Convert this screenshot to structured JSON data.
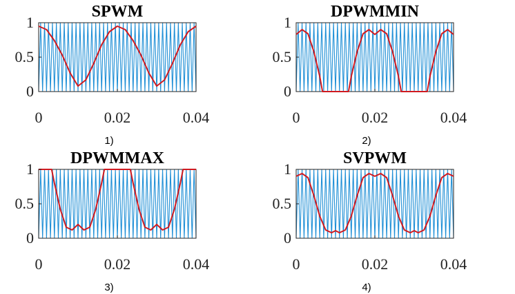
{
  "colors": {
    "carrier": "#1f8fd6",
    "reference": "#d01a20",
    "axis": "#222222"
  },
  "chart_data": [
    {
      "type": "line",
      "title": "SPWM",
      "caption": "1)",
      "xlim": [
        0,
        0.04
      ],
      "ylim": [
        0,
        1
      ],
      "xticks": [
        "0",
        "0.02",
        "0.04"
      ],
      "yticks": [
        "0",
        "0.5",
        "1"
      ],
      "series": [
        {
          "role": "carrier",
          "type": "triangle",
          "periods": 40,
          "min": 0,
          "max": 1
        },
        {
          "role": "reference",
          "x": [
            0,
            0.002,
            0.004,
            0.006,
            0.008,
            0.01,
            0.012,
            0.014,
            0.016,
            0.018,
            0.02,
            0.022,
            0.024,
            0.026,
            0.028,
            0.03,
            0.032,
            0.034,
            0.036,
            0.038,
            0.04
          ],
          "y": [
            0.95,
            0.9,
            0.74,
            0.53,
            0.27,
            0.08,
            0.17,
            0.41,
            0.68,
            0.87,
            0.95,
            0.9,
            0.74,
            0.53,
            0.27,
            0.08,
            0.17,
            0.41,
            0.68,
            0.87,
            0.95
          ]
        }
      ]
    },
    {
      "type": "line",
      "title": "DPWMMIN",
      "caption": "2)",
      "xlim": [
        0,
        0.04
      ],
      "ylim": [
        0,
        1
      ],
      "xticks": [
        "0",
        "0.02",
        "0.04"
      ],
      "yticks": [
        "0",
        "0.5",
        "1"
      ],
      "series": [
        {
          "role": "carrier",
          "type": "triangle",
          "periods": 40,
          "min": 0,
          "max": 1
        },
        {
          "role": "reference",
          "x": [
            0,
            0.0015,
            0.003,
            0.0045,
            0.006,
            0.0067,
            0.01,
            0.0133,
            0.014,
            0.0155,
            0.017,
            0.0185,
            0.02,
            0.0215,
            0.023,
            0.0245,
            0.026,
            0.0267,
            0.03,
            0.0333,
            0.034,
            0.0355,
            0.037,
            0.0385,
            0.04
          ],
          "y": [
            0.83,
            0.9,
            0.84,
            0.58,
            0.22,
            0.0,
            0.0,
            0.0,
            0.22,
            0.58,
            0.84,
            0.9,
            0.83,
            0.9,
            0.84,
            0.58,
            0.22,
            0.0,
            0.0,
            0.0,
            0.22,
            0.58,
            0.84,
            0.9,
            0.83
          ]
        }
      ]
    },
    {
      "type": "line",
      "title": "DPWMMAX",
      "caption": "3)",
      "xlim": [
        0,
        0.04
      ],
      "ylim": [
        0,
        1
      ],
      "xticks": [
        "0",
        "0.02",
        "0.04"
      ],
      "yticks": [
        "0",
        "0.5",
        "1"
      ],
      "series": [
        {
          "role": "carrier",
          "type": "triangle",
          "periods": 40,
          "min": 0,
          "max": 1
        },
        {
          "role": "reference",
          "x": [
            0,
            0.0033,
            0.004,
            0.0055,
            0.007,
            0.0085,
            0.01,
            0.0115,
            0.013,
            0.0145,
            0.016,
            0.0167,
            0.02,
            0.0233,
            0.024,
            0.0255,
            0.027,
            0.0285,
            0.03,
            0.0315,
            0.033,
            0.0345,
            0.036,
            0.0367,
            0.04
          ],
          "y": [
            1.0,
            1.0,
            0.8,
            0.42,
            0.16,
            0.12,
            0.2,
            0.12,
            0.16,
            0.42,
            0.8,
            1.0,
            1.0,
            1.0,
            0.8,
            0.42,
            0.16,
            0.12,
            0.2,
            0.12,
            0.16,
            0.42,
            0.8,
            1.0,
            1.0
          ]
        }
      ]
    },
    {
      "type": "line",
      "title": "SVPWM",
      "caption": "4)",
      "xlim": [
        0,
        0.04
      ],
      "ylim": [
        0,
        1
      ],
      "xticks": [
        "0",
        "0.02",
        "0.04"
      ],
      "yticks": [
        "0",
        "0.5",
        "1"
      ],
      "series": [
        {
          "role": "carrier",
          "type": "triangle",
          "periods": 40,
          "min": 0,
          "max": 1
        },
        {
          "role": "reference",
          "x": [
            0,
            0.0015,
            0.003,
            0.0045,
            0.006,
            0.0075,
            0.009,
            0.01,
            0.011,
            0.0125,
            0.014,
            0.0155,
            0.017,
            0.0185,
            0.02,
            0.0215,
            0.023,
            0.0245,
            0.026,
            0.0275,
            0.029,
            0.03,
            0.031,
            0.0325,
            0.034,
            0.0355,
            0.037,
            0.0385,
            0.04
          ],
          "y": [
            0.9,
            0.94,
            0.88,
            0.62,
            0.32,
            0.12,
            0.08,
            0.11,
            0.08,
            0.12,
            0.32,
            0.62,
            0.88,
            0.94,
            0.9,
            0.94,
            0.88,
            0.62,
            0.32,
            0.12,
            0.08,
            0.11,
            0.08,
            0.12,
            0.32,
            0.62,
            0.88,
            0.94,
            0.9
          ]
        }
      ]
    }
  ]
}
